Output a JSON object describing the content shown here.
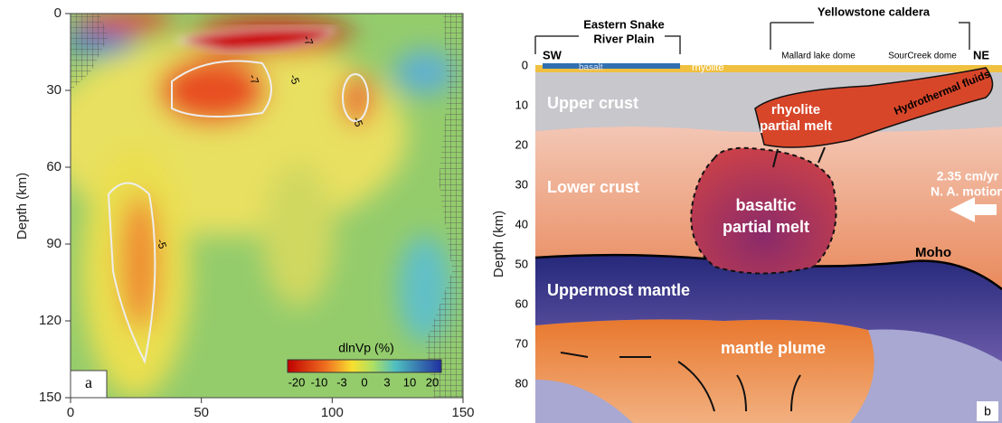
{
  "panel_a": {
    "y_label": "Depth (km)",
    "y_ticks": [
      0,
      30,
      60,
      90,
      120,
      150
    ],
    "x_ticks": [
      0,
      50,
      100,
      150
    ],
    "colorbar_label": "dlnVp (%)",
    "colorbar_ticks": [
      -20,
      -10,
      -3,
      0,
      3,
      10,
      20
    ],
    "contour_labels": [
      "-7",
      "-7",
      "-5",
      "-5",
      "-5"
    ],
    "panel_label": "a"
  },
  "panel_b": {
    "y_label": "Depth (km)",
    "y_ticks": [
      0,
      10,
      20,
      30,
      40,
      50,
      60,
      70,
      80
    ],
    "region_left": [
      "Eastern Snake",
      "River Plain"
    ],
    "region_right": "Yellowstone caldera",
    "sw": "SW",
    "ne": "NE",
    "basalt": "basalt",
    "rhyolite": "rhyolite",
    "dome_1": "Mallard lake dome",
    "dome_2": "SourCreek dome",
    "upper_crust": "Upper crust",
    "rhyolite_melt": [
      "rhyolite",
      "partial melt"
    ],
    "hydrothermal": "Hydrothermal fluids",
    "motion": [
      "2.35 cm/yr",
      "N. A. motion"
    ],
    "lower_crust": "Lower crust",
    "basaltic_melt": [
      "basaltic",
      "partial melt"
    ],
    "moho": "Moho",
    "mantle": "Uppermost mantle",
    "plume": "mantle plume",
    "panel_label": "b"
  }
}
